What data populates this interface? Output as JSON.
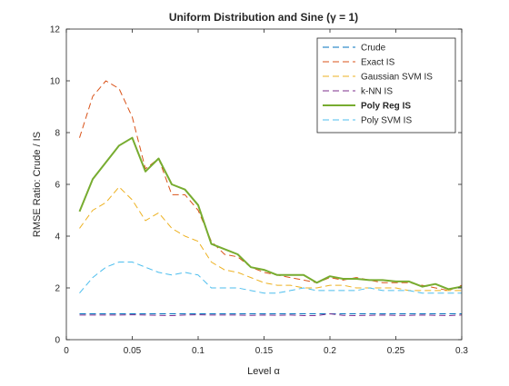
{
  "chart_data": {
    "type": "line",
    "title": "Uniform Distribution and Sine  (γ = 1)",
    "xlabel": "Level α",
    "ylabel": "RMSE Ratio: Crude / IS",
    "xlim": [
      0,
      0.3
    ],
    "ylim": [
      0,
      12
    ],
    "xticks": [
      "0",
      "0.05",
      "0.1",
      "0.15",
      "0.2",
      "0.25",
      "0.3"
    ],
    "yticks": [
      "0",
      "2",
      "4",
      "6",
      "8",
      "10",
      "12"
    ],
    "grid": false,
    "legend_position": "top-right",
    "x": [
      0.01,
      0.02,
      0.03,
      0.04,
      0.05,
      0.06,
      0.07,
      0.08,
      0.09,
      0.1,
      0.11,
      0.12,
      0.13,
      0.14,
      0.15,
      0.16,
      0.17,
      0.18,
      0.19,
      0.2,
      0.21,
      0.22,
      0.23,
      0.24,
      0.25,
      0.26,
      0.27,
      0.28,
      0.29,
      0.3
    ],
    "series": [
      {
        "name": "Crude",
        "color": "#0072BD",
        "style": "dashed",
        "width": 1,
        "values": [
          1.0,
          1.0,
          1.0,
          1.0,
          1.0,
          1.0,
          1.0,
          1.0,
          1.0,
          1.0,
          1.0,
          1.0,
          1.0,
          1.0,
          1.0,
          1.0,
          1.0,
          1.0,
          1.0,
          1.0,
          1.0,
          1.0,
          1.0,
          1.0,
          1.0,
          1.0,
          1.0,
          1.0,
          1.0,
          1.0
        ]
      },
      {
        "name": "Exact IS",
        "color": "#D95319",
        "style": "dashed",
        "width": 1,
        "values": [
          7.8,
          9.4,
          10.0,
          9.7,
          8.6,
          6.6,
          7.0,
          5.6,
          5.6,
          5.0,
          3.8,
          3.3,
          3.2,
          2.8,
          2.6,
          2.5,
          2.4,
          2.3,
          2.2,
          2.4,
          2.3,
          2.4,
          2.3,
          2.2,
          2.2,
          2.2,
          2.1,
          2.0,
          1.9,
          2.1
        ]
      },
      {
        "name": "Gaussian SVM IS",
        "color": "#EDB120",
        "style": "dashed",
        "width": 1,
        "values": [
          4.3,
          5.0,
          5.3,
          5.9,
          5.4,
          4.6,
          4.9,
          4.3,
          4.0,
          3.8,
          3.0,
          2.7,
          2.6,
          2.4,
          2.2,
          2.1,
          2.1,
          2.0,
          2.0,
          2.1,
          2.1,
          2.0,
          2.0,
          2.0,
          2.0,
          1.9,
          1.9,
          1.9,
          1.9,
          1.9
        ]
      },
      {
        "name": "k-NN IS",
        "color": "#7E2F8E",
        "style": "dashed",
        "width": 1,
        "values": [
          0.95,
          0.95,
          0.95,
          0.95,
          0.96,
          0.95,
          0.94,
          0.93,
          0.95,
          0.96,
          0.95,
          0.95,
          0.95,
          0.94,
          0.95,
          0.94,
          0.95,
          0.93,
          0.93,
          1.0,
          0.94,
          0.93,
          0.94,
          0.95,
          0.94,
          0.94,
          0.95,
          0.94,
          0.93,
          0.95
        ]
      },
      {
        "name": "Poly Reg IS",
        "color": "#77AC30",
        "style": "solid",
        "width": 2,
        "values": [
          4.95,
          6.2,
          6.85,
          7.5,
          7.8,
          6.5,
          7.0,
          6.0,
          5.8,
          5.2,
          3.7,
          3.5,
          3.3,
          2.8,
          2.7,
          2.5,
          2.5,
          2.5,
          2.2,
          2.45,
          2.35,
          2.35,
          2.3,
          2.3,
          2.25,
          2.25,
          2.05,
          2.15,
          1.95,
          2.05
        ]
      },
      {
        "name": "Poly SVM IS",
        "color": "#4DBEEE",
        "style": "dashed",
        "width": 1,
        "values": [
          1.8,
          2.4,
          2.8,
          3.0,
          3.0,
          2.8,
          2.6,
          2.5,
          2.6,
          2.5,
          2.0,
          2.0,
          2.0,
          1.9,
          1.8,
          1.8,
          1.9,
          2.0,
          1.9,
          1.9,
          1.9,
          1.9,
          2.0,
          1.9,
          1.9,
          1.9,
          1.8,
          1.8,
          1.8,
          1.8
        ]
      }
    ]
  }
}
